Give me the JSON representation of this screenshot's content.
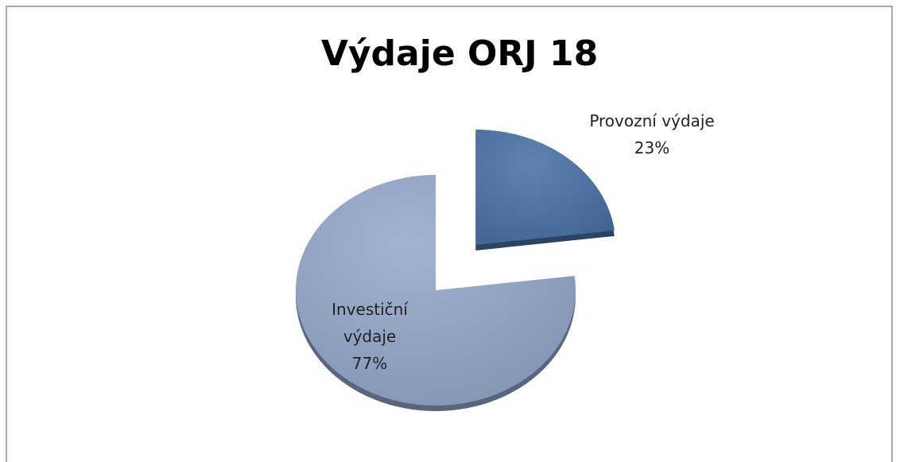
{
  "chart_data": {
    "type": "pie",
    "title": "Výdaje ORJ 18",
    "categories": [
      "Provozní výdaje",
      "Investiční výdaje"
    ],
    "values": [
      23,
      77
    ],
    "value_labels": [
      "23%",
      "77%"
    ],
    "colors": [
      "#4a72a6",
      "#95a9cc"
    ]
  }
}
